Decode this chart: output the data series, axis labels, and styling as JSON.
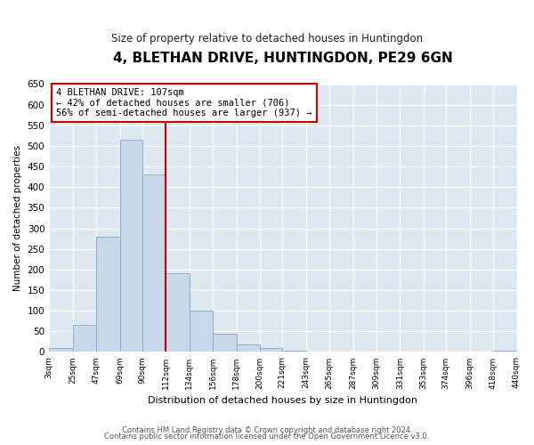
{
  "title": "4, BLETHAN DRIVE, HUNTINGDON, PE29 6GN",
  "subtitle": "Size of property relative to detached houses in Huntingdon",
  "xlabel": "Distribution of detached houses by size in Huntingdon",
  "ylabel": "Number of detached properties",
  "bin_edges": [
    3,
    25,
    47,
    69,
    90,
    112,
    134,
    156,
    178,
    200,
    221,
    243,
    265,
    287,
    309,
    331,
    353,
    374,
    396,
    418,
    440
  ],
  "bin_counts": [
    10,
    65,
    280,
    515,
    430,
    190,
    100,
    45,
    18,
    10,
    3,
    0,
    0,
    0,
    0,
    0,
    0,
    0,
    0,
    3
  ],
  "bar_facecolor": "#c9d9eb",
  "bar_edgecolor": "#8eafc8",
  "vline_x": 112,
  "vline_color": "#cc0000",
  "ylim": [
    0,
    650
  ],
  "yticks": [
    0,
    50,
    100,
    150,
    200,
    250,
    300,
    350,
    400,
    450,
    500,
    550,
    600,
    650
  ],
  "xtick_labels": [
    "3sqm",
    "25sqm",
    "47sqm",
    "69sqm",
    "90sqm",
    "112sqm",
    "134sqm",
    "156sqm",
    "178sqm",
    "200sqm",
    "221sqm",
    "243sqm",
    "265sqm",
    "287sqm",
    "309sqm",
    "331sqm",
    "353sqm",
    "374sqm",
    "396sqm",
    "418sqm",
    "440sqm"
  ],
  "annotation_title": "4 BLETHAN DRIVE: 107sqm",
  "annotation_line1": "← 42% of detached houses are smaller (706)",
  "annotation_line2": "56% of semi-detached houses are larger (937) →",
  "annotation_box_color": "#cc0000",
  "footnote1": "Contains HM Land Registry data © Crown copyright and database right 2024.",
  "footnote2": "Contains public sector information licensed under the Open Government Licence v3.0.",
  "fig_bg_color": "#ffffff",
  "plot_bg_color": "#dde8f0"
}
